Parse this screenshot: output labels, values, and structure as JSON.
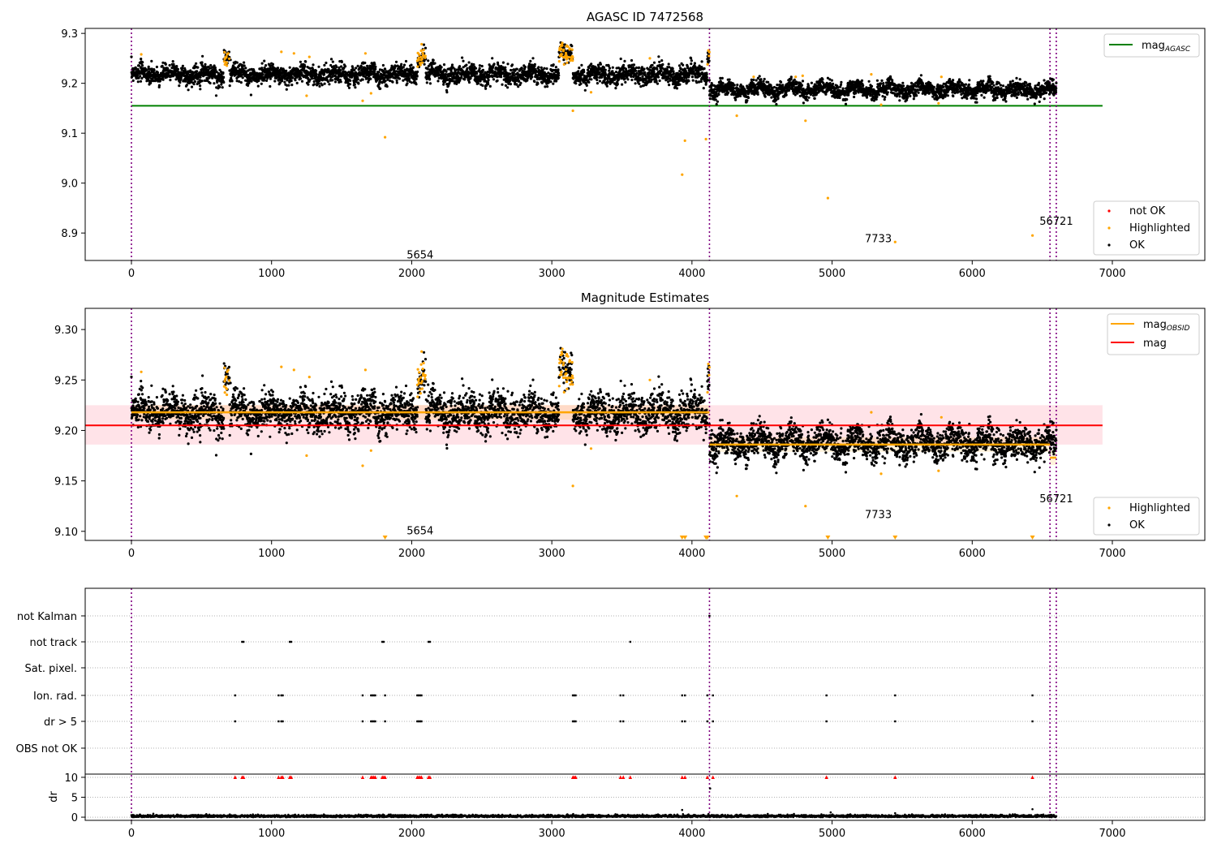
{
  "figure": {
    "title": "AGASC ID 7472568",
    "colors": {
      "ok": "#000000",
      "highlighted": "#ffa500",
      "not_ok": "#ff0000",
      "agasc": "#008000",
      "obsid": "#ffa500",
      "mag": "#ff0000",
      "vline": "#800080",
      "band": "#ffc0cb"
    }
  },
  "chart_data": [
    {
      "type": "scatter",
      "title": "AGASC ID 7472568",
      "xlim": [
        -330,
        7660
      ],
      "ylim": [
        8.845,
        9.31
      ],
      "xticks": [
        0,
        1000,
        2000,
        3000,
        4000,
        5000,
        6000,
        7000
      ],
      "yticks": [
        8.9,
        9.0,
        9.1,
        9.2,
        9.3
      ],
      "ytick_labels": [
        "8.9",
        "9.0",
        "9.1",
        "9.2",
        "9.3"
      ],
      "mag_agasc": 9.155,
      "mag_agasc_x_range": [
        0,
        6930
      ],
      "obs_boundaries": [
        0,
        4125,
        6555,
        6600
      ],
      "obs_labels": [
        {
          "text": "5654",
          "x": 2060,
          "y": 8.857
        },
        {
          "text": "7733",
          "x": 5330,
          "y": 8.89
        },
        {
          "text": "56721",
          "x": 6600,
          "y": 8.925
        }
      ],
      "segments": [
        {
          "x0": 0,
          "x1": 4125,
          "mean": 9.218,
          "sd": 0.012
        },
        {
          "x0": 4125,
          "x1": 6600,
          "mean": 9.187,
          "sd": 0.01
        }
      ],
      "highlight_clusters": [
        [
          660,
          700
        ],
        [
          2040,
          2100
        ],
        [
          3050,
          3150
        ],
        [
          4110,
          4125
        ]
      ],
      "highlighted_points": [
        [
          1810,
          9.092
        ],
        [
          3930,
          9.017
        ],
        [
          3950,
          9.085
        ],
        [
          4100,
          9.088
        ],
        [
          4320,
          9.135
        ],
        [
          4810,
          9.125
        ],
        [
          4970,
          8.97
        ],
        [
          5450,
          8.882
        ],
        [
          6430,
          8.895
        ],
        [
          1710,
          9.18
        ],
        [
          1650,
          9.165
        ],
        [
          1250,
          9.175
        ],
        [
          3150,
          9.145
        ],
        [
          3280,
          9.182
        ],
        [
          5280,
          9.218
        ],
        [
          5350,
          9.157
        ],
        [
          5760,
          9.16
        ],
        [
          5780,
          9.213
        ],
        [
          1070,
          9.263
        ],
        [
          1160,
          9.26
        ],
        [
          1670,
          9.26
        ],
        [
          1270,
          9.253
        ],
        [
          70,
          9.258
        ],
        [
          3700,
          9.25
        ],
        [
          4440,
          9.213
        ],
        [
          4740,
          9.213
        ],
        [
          4790,
          9.215
        ]
      ],
      "legends": [
        {
          "label": "mag",
          "sub": "AGASC"
        },
        {
          "label": "not OK"
        },
        {
          "label": "Highlighted"
        },
        {
          "label": "OK"
        }
      ]
    },
    {
      "type": "scatter",
      "title": "Magnitude Estimates",
      "xlim": [
        -330,
        7660
      ],
      "ylim": [
        9.091,
        9.321
      ],
      "xticks": [
        0,
        1000,
        2000,
        3000,
        4000,
        5000,
        6000,
        7000
      ],
      "yticks": [
        9.1,
        9.15,
        9.2,
        9.25,
        9.3
      ],
      "ytick_labels": [
        "9.10",
        "9.15",
        "9.20",
        "9.25",
        "9.30"
      ],
      "mag": 9.205,
      "mag_band": [
        9.186,
        9.225
      ],
      "mag_x_range": [
        -330,
        6930
      ],
      "obsid_levels": [
        {
          "x0": 0,
          "x1": 4125,
          "value": 9.218
        },
        {
          "x0": 4125,
          "x1": 6555,
          "value": 9.186
        },
        {
          "x0": 6555,
          "x1": 6600,
          "value": 9.173
        }
      ],
      "obs_boundaries": [
        0,
        4125,
        6555,
        6600
      ],
      "obs_labels": [
        {
          "text": "5654",
          "x": 2060,
          "y": 9.101
        },
        {
          "text": "7733",
          "x": 5330,
          "y": 9.117
        },
        {
          "text": "56721",
          "x": 6600,
          "y": 9.133
        }
      ],
      "highlighted_points": [
        [
          4320,
          9.135
        ],
        [
          4810,
          9.125
        ],
        [
          3150,
          9.145
        ],
        [
          1710,
          9.18
        ],
        [
          1650,
          9.165
        ],
        [
          1250,
          9.175
        ],
        [
          3280,
          9.182
        ],
        [
          5280,
          9.218
        ],
        [
          5350,
          9.157
        ],
        [
          5760,
          9.16
        ],
        [
          5780,
          9.213
        ],
        [
          1070,
          9.263
        ],
        [
          1160,
          9.26
        ],
        [
          1670,
          9.26
        ],
        [
          1270,
          9.253
        ],
        [
          70,
          9.258
        ],
        [
          3700,
          9.25
        ]
      ],
      "below_limit_points": [
        1810,
        3930,
        3950,
        4100,
        4110,
        4970,
        5450,
        6430
      ],
      "legends": [
        {
          "label": "mag",
          "sub": "OBSID"
        },
        {
          "label": "mag"
        },
        {
          "label": "Highlighted"
        },
        {
          "label": "OK"
        }
      ]
    },
    {
      "type": "scatter",
      "title": "",
      "xlim": [
        -330,
        7660
      ],
      "flag_rows": [
        "not Kalman",
        "not track",
        "Sat. pixel.",
        "Ion. rad.",
        "dr > 5",
        "OBS not OK"
      ],
      "flag_events": {
        "not Kalman": [
          4125
        ],
        "not track": [
          790,
          800,
          1130,
          1140,
          1790,
          1800,
          2120,
          2130,
          3560
        ],
        "Sat. pixel.": [],
        "Ion. rad.": [
          740,
          1050,
          1070,
          1080,
          1650,
          1710,
          1720,
          1730,
          1740,
          1810,
          2040,
          2050,
          2060,
          2070,
          3150,
          3160,
          3170,
          3490,
          3510,
          3930,
          3950,
          4110,
          4150,
          4960,
          5450,
          6430
        ],
        "dr > 5": [
          740,
          1050,
          1070,
          1080,
          1650,
          1710,
          1720,
          1730,
          1740,
          1810,
          2040,
          2050,
          2060,
          2070,
          3150,
          3160,
          3170,
          3490,
          3510,
          3930,
          3950,
          4110,
          4150,
          4960,
          5450,
          6430
        ],
        "OBS not OK": []
      },
      "dr_axis": {
        "ylabel": "dr",
        "ylim": [
          -0.8,
          10.6
        ],
        "yticks": [
          0,
          5,
          10
        ],
        "ytick_labels": [
          "0",
          "5",
          "10"
        ],
        "clipped_x": [
          740,
          790,
          800,
          1050,
          1070,
          1080,
          1130,
          1140,
          1650,
          1710,
          1720,
          1730,
          1740,
          1790,
          1800,
          1810,
          2040,
          2050,
          2060,
          2070,
          2120,
          2130,
          3150,
          3160,
          3170,
          3490,
          3510,
          3560,
          3930,
          3950,
          4110,
          4150,
          4960,
          5450,
          6430
        ],
        "outliers": [
          [
            3930,
            1.8
          ],
          [
            4130,
            7.2
          ],
          [
            4990,
            1.2
          ],
          [
            6430,
            2.0
          ],
          [
            5450,
            1.0
          ]
        ]
      },
      "xticks": [
        0,
        1000,
        2000,
        3000,
        4000,
        5000,
        6000,
        7000
      ]
    }
  ]
}
